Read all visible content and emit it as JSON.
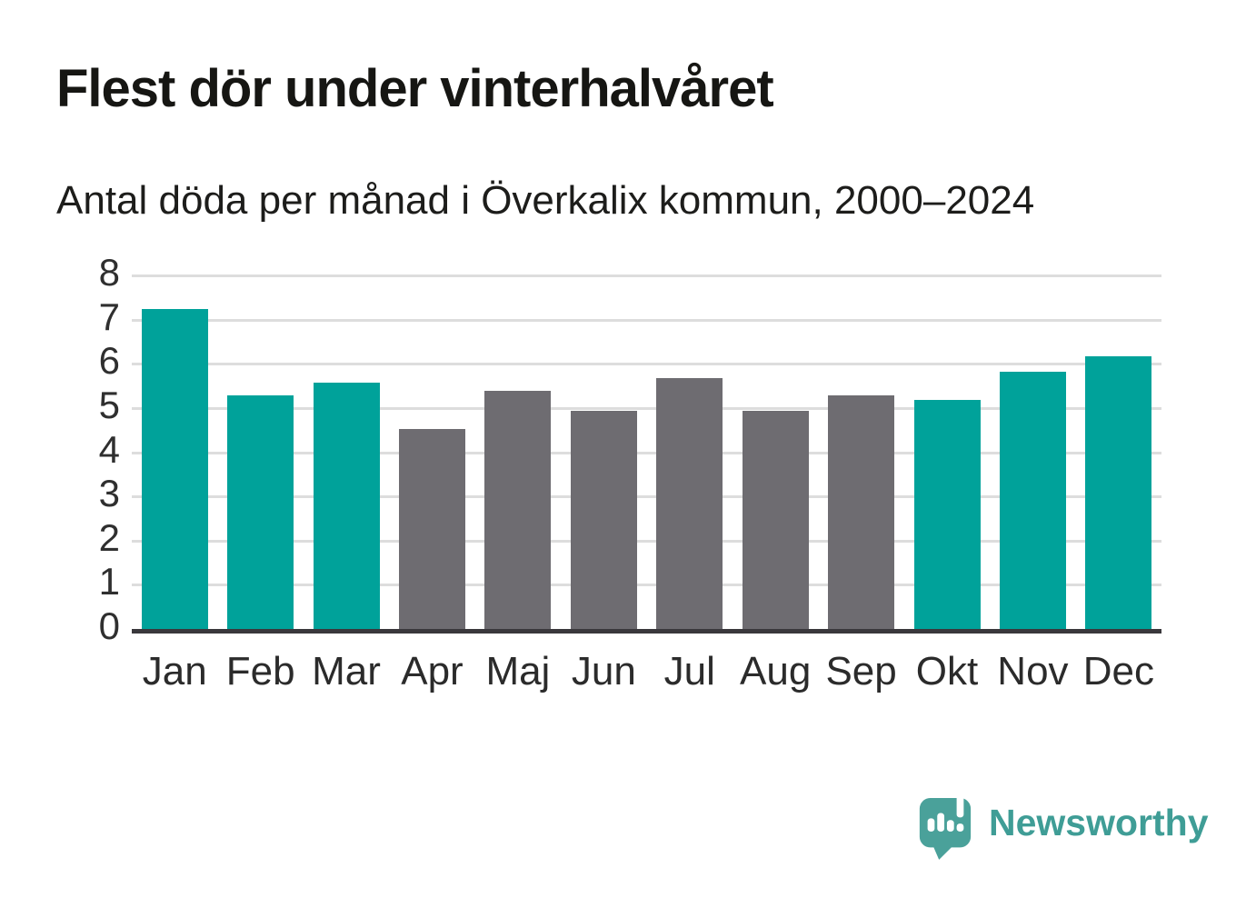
{
  "title": "Flest dör under vinterhalvåret",
  "subtitle": "Antal döda per månad i Överkalix kommun, 2000–2024",
  "brand": {
    "name": "Newsworthy",
    "logo_color": "#4aa19a",
    "text_color": "#3f9d96"
  },
  "colors": {
    "highlight": "#00a29a",
    "muted": "#6e6c71",
    "axis": "#3a383c",
    "grid": "#dddddd",
    "tick_label": "#2f2f2f"
  },
  "chart_data": {
    "type": "bar",
    "categories": [
      "Jan",
      "Feb",
      "Mar",
      "Apr",
      "Maj",
      "Jun",
      "Jul",
      "Aug",
      "Sep",
      "Okt",
      "Nov",
      "Dec"
    ],
    "values": [
      7.25,
      5.3,
      5.6,
      4.55,
      5.4,
      4.95,
      5.7,
      4.95,
      5.3,
      5.2,
      5.85,
      6.2
    ],
    "highlighted_categories": [
      "Jan",
      "Feb",
      "Mar",
      "Okt",
      "Nov",
      "Dec"
    ],
    "title": "Flest dör under vinterhalvåret",
    "subtitle": "Antal döda per månad i Överkalix kommun, 2000–2024",
    "xlabel": "",
    "ylabel": "",
    "ylim": [
      0,
      8
    ],
    "yticks": [
      0,
      1,
      2,
      3,
      4,
      5,
      6,
      7,
      8
    ],
    "grid": true,
    "legend": false
  }
}
